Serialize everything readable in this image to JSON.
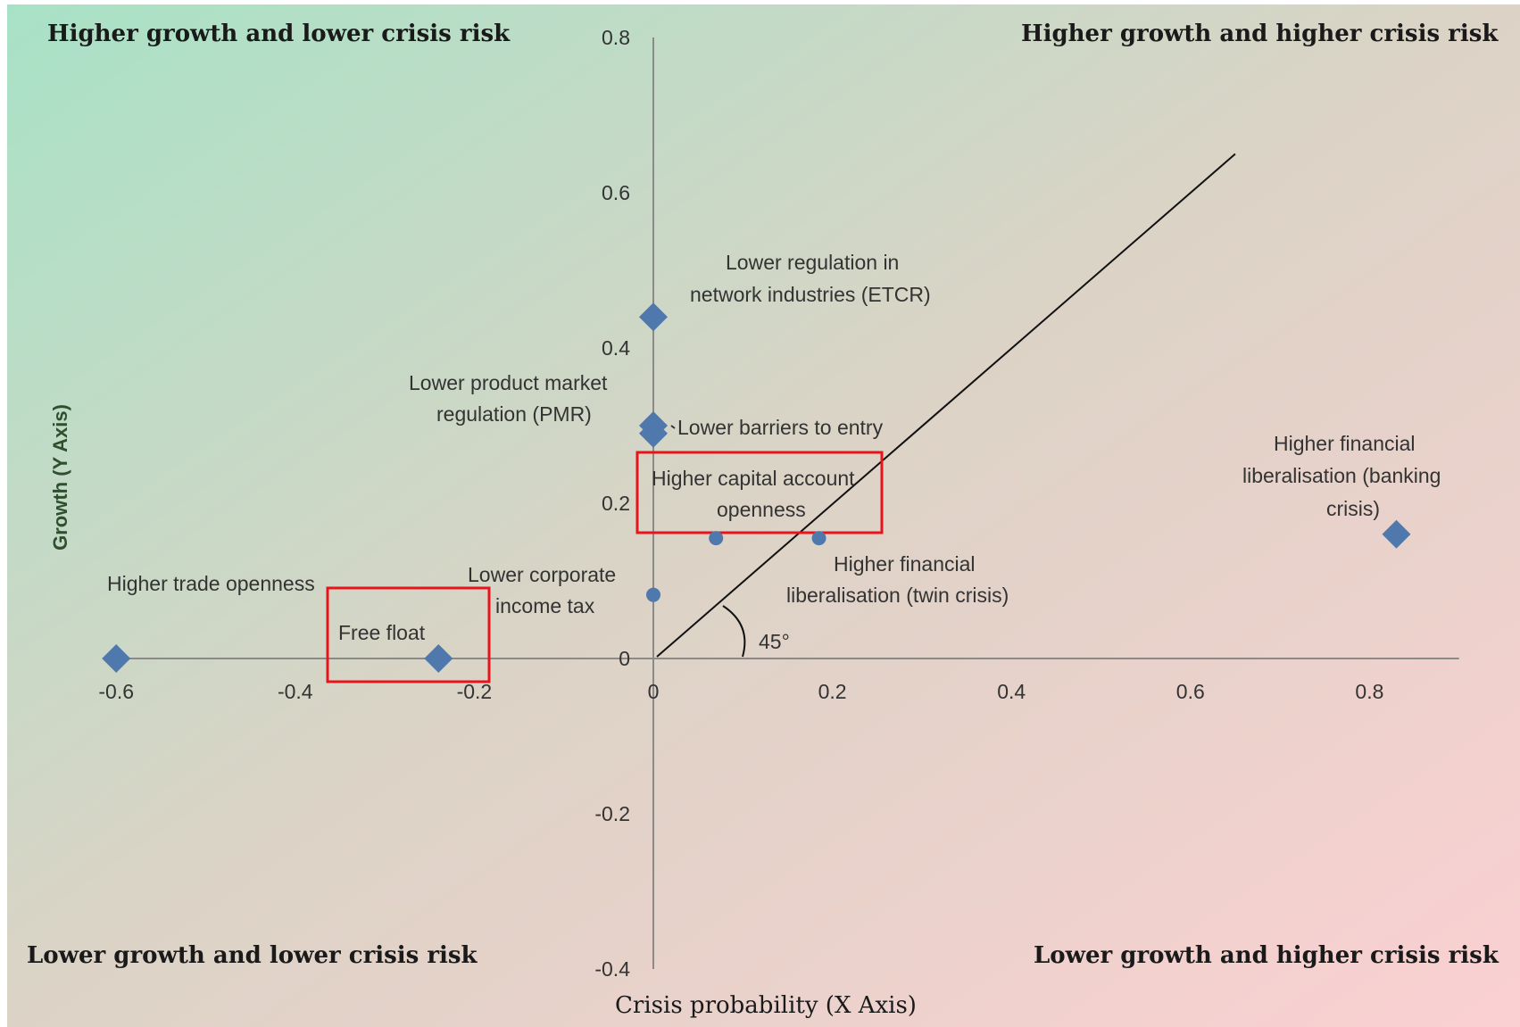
{
  "chart_data": {
    "type": "scatter",
    "xlabel": "Crisis probability (X Axis)",
    "ylabel": "Growth (Y Axis)",
    "xlim": [
      -0.6,
      0.9
    ],
    "ylim": [
      -0.4,
      0.8
    ],
    "x_ticks": [
      "-0.6",
      "-0.4",
      "-0.2",
      "0",
      "0.2",
      "0.4",
      "0.6",
      "0.8"
    ],
    "y_ticks": [
      "-0.4",
      "-0.2",
      "0",
      "0.2",
      "0.4",
      "0.6",
      "0.8"
    ],
    "quadrant_labels": {
      "top_left": "Higher growth and lower crisis risk",
      "top_right": "Higher growth and higher crisis risk",
      "bottom_left": "Lower growth and lower crisis risk",
      "bottom_right": "Lower growth and higher crisis risk"
    },
    "reference_line": {
      "from": [
        0,
        0
      ],
      "to": [
        0.65,
        0.65
      ],
      "angle_label": "45°"
    },
    "points": [
      {
        "x": 0.0,
        "y": 0.44,
        "marker": "diamond",
        "label": [
          "Lower regulation in",
          "network industries  (ETCR)"
        ]
      },
      {
        "x": 0.0,
        "y": 0.3,
        "marker": "diamond",
        "label": [
          "Lower product market",
          "regulation (PMR)"
        ]
      },
      {
        "x": 0.0,
        "y": 0.29,
        "marker": "diamond",
        "label": [
          "Lower barriers to entry"
        ]
      },
      {
        "x": 0.07,
        "y": 0.155,
        "marker": "circle",
        "label": [
          "Higher capital account",
          "openness"
        ],
        "highlighted": true
      },
      {
        "x": 0.185,
        "y": 0.155,
        "marker": "circle",
        "label": [
          "Higher financial",
          "liberalisation (twin crisis)"
        ]
      },
      {
        "x": 0.83,
        "y": 0.16,
        "marker": "diamond",
        "label": [
          "Higher financial",
          "liberalisation (banking",
          "crisis)"
        ]
      },
      {
        "x": 0.0,
        "y": 0.082,
        "marker": "circle",
        "label": [
          "Lower corporate",
          "income tax"
        ]
      },
      {
        "x": -0.6,
        "y": 0.0,
        "marker": "diamond",
        "label": [
          "Higher trade openness"
        ]
      },
      {
        "x": -0.24,
        "y": 0.0,
        "marker": "diamond",
        "label": [
          "Free float"
        ],
        "highlighted": true
      }
    ],
    "highlight_color": "#e8141b",
    "marker_color": "#4f79ac",
    "grid": false,
    "legend": "none"
  }
}
